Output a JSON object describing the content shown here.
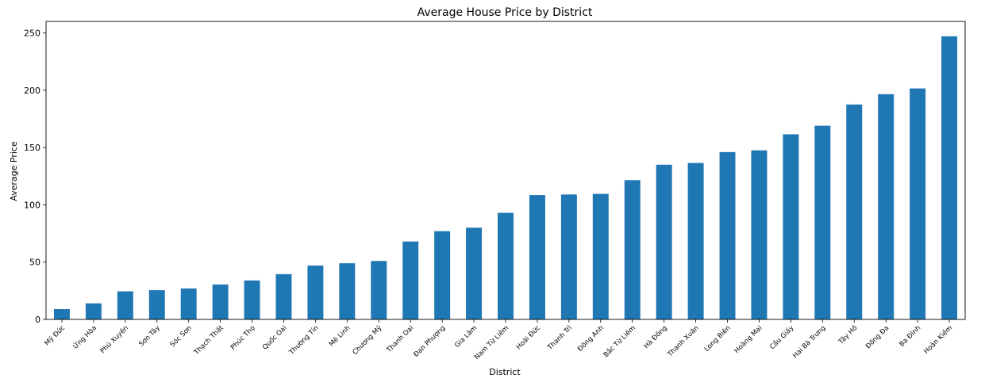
{
  "chart_data": {
    "type": "bar",
    "title": "Average House Price by District",
    "xlabel": "District",
    "ylabel": "Average Price",
    "ylim": [
      0,
      260
    ],
    "yticks": [
      0,
      50,
      100,
      150,
      200,
      250
    ],
    "grid": false,
    "bar_color": "#1f77b4",
    "categories": [
      "Mỹ Đức",
      "Ứng Hòa",
      "Phú Xuyên",
      "Sơn Tây",
      "Sóc Sơn",
      "Thạch Thất",
      "Phúc Thọ",
      "Quốc Oai",
      "Thường Tín",
      "Mê Linh",
      "Chương Mỹ",
      "Thanh Oai",
      "Đan Phượng",
      "Gia Lâm",
      "Nam Từ Liêm",
      "Hoài Đức",
      "Thanh Trì",
      "Đông Anh",
      "Bắc Từ Liêm",
      "Hà Đông",
      "Thanh Xuân",
      "Long Biên",
      "Hoàng Mai",
      "Cầu Giấy",
      "Hai Bà Trưng",
      "Tây Hồ",
      "Đống Đa",
      "Ba Đình",
      "Hoàn Kiếm"
    ],
    "values": [
      9,
      14,
      24.5,
      25.5,
      27,
      30.5,
      34,
      39.5,
      47,
      49,
      51,
      68,
      77,
      80,
      93,
      108.5,
      109,
      109.5,
      121.5,
      135,
      136.5,
      146,
      147.5,
      161.5,
      169,
      187.5,
      196.5,
      201.5,
      247
    ]
  }
}
